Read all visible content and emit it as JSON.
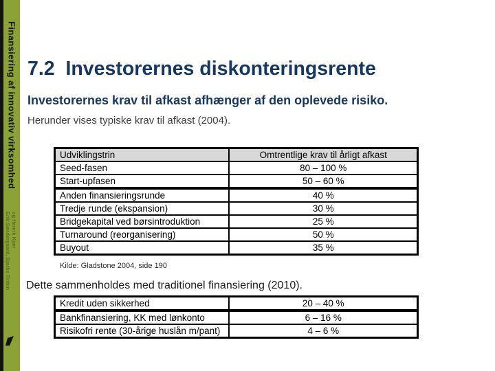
{
  "accent": {
    "sidebar_green": "#8CA136",
    "title_navy": "#17375E",
    "table_header_bg": "#D8D8D8"
  },
  "sidebar": {
    "series_title": "Finansiering af innovativ virksomhed",
    "authors": [
      "Erik Søndergaard, Bjarke Tinten",
      "og Henrik Kjær"
    ]
  },
  "slide": {
    "title": "7.2  Investorernes diskonteringsrente",
    "lead": "Investorernes krav til afkast afhænger af den oplevede risiko.",
    "note": "Herunder vises typiske krav til afkast (2004)."
  },
  "afkast_table": {
    "columns": [
      "Udviklingstrin",
      "Omtrentlige krav til årligt afkast"
    ],
    "rows": [
      [
        "Seed-fasen",
        "80 – 100 %"
      ],
      [
        "Start-upfasen",
        "50 – 60 %"
      ],
      [
        "Anden finansieringsrunde",
        "40 %"
      ],
      [
        "Tredje runde (ekspansion)",
        "30 %"
      ],
      [
        "Bridgekapital ved børsintroduktion",
        "25 %"
      ],
      [
        "Turnaround (reorganisering)",
        "50 %"
      ],
      [
        "Buyout",
        "35 %"
      ]
    ],
    "source": "Kilde: Gladstone 2004, side 190"
  },
  "comparison": {
    "heading": "Dette sammenholdes med traditionel finansiering (2010).",
    "rows": [
      [
        "Kredit uden sikkerhed",
        "20 – 40 %"
      ],
      [
        "Bankfinansiering, KK med lønkonto",
        "6 – 16 %"
      ],
      [
        "Risikofri rente (30-årige huslån m/pant)",
        "4 – 6 %"
      ]
    ]
  }
}
